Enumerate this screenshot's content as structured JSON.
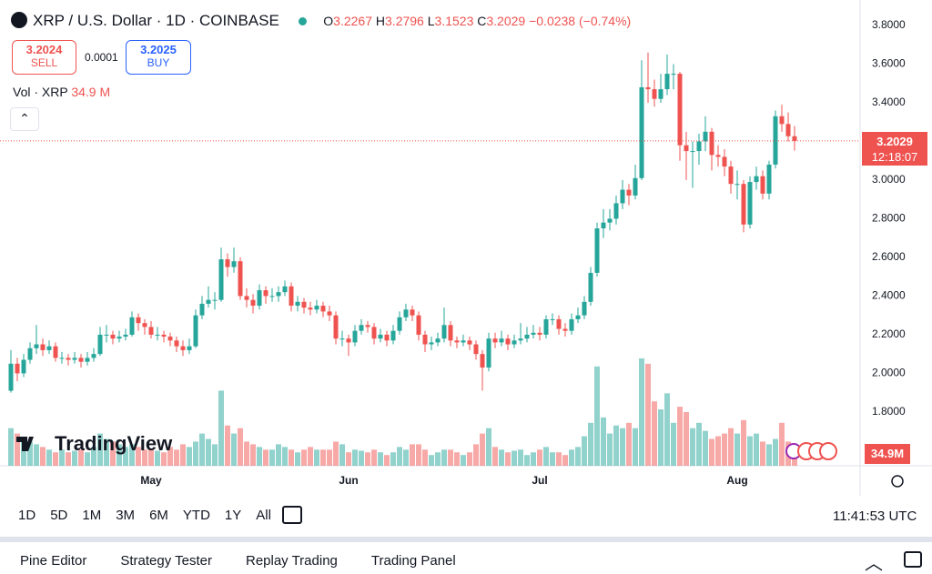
{
  "chart_data": {
    "type": "candlestick",
    "categories": [
      null,
      null,
      null,
      null,
      null,
      null,
      null,
      null,
      null,
      null,
      null,
      null,
      null,
      null,
      null,
      null,
      null,
      null,
      null,
      null,
      null,
      null,
      "May",
      null,
      null,
      null,
      null,
      null,
      null,
      null,
      null,
      null,
      null,
      null,
      null,
      null,
      null,
      null,
      null,
      null,
      null,
      null,
      null,
      null,
      null,
      null,
      null,
      null,
      null,
      null,
      null,
      null,
      null,
      "Jun",
      null,
      null,
      null,
      null,
      null,
      null,
      null,
      null,
      null,
      null,
      null,
      null,
      null,
      null,
      null,
      null,
      null,
      null,
      null,
      null,
      null,
      null,
      null,
      null,
      null,
      null,
      null,
      null,
      null,
      "Jul",
      null,
      null,
      null,
      null,
      null,
      null,
      null,
      null,
      null,
      null,
      null,
      null,
      null,
      null,
      null,
      null,
      null,
      null,
      null,
      null,
      null,
      null,
      null,
      null,
      null,
      null,
      null,
      null,
      null,
      null,
      "Aug",
      null,
      null,
      null,
      null,
      null,
      null,
      null,
      null,
      null
    ],
    "open": [
      1.91,
      2.05,
      2.0,
      2.07,
      2.13,
      2.15,
      2.12,
      2.14,
      2.08,
      2.08,
      2.07,
      2.08,
      2.06,
      2.08,
      2.1,
      2.2,
      2.2,
      2.18,
      2.19,
      2.2,
      2.29,
      2.26,
      2.24,
      2.2,
      2.2,
      2.19,
      2.17,
      2.14,
      2.12,
      2.14,
      2.3,
      2.36,
      2.38,
      2.38,
      2.59,
      2.55,
      2.58,
      2.4,
      2.38,
      2.35,
      2.43,
      2.4,
      2.4,
      2.42,
      2.45,
      2.35,
      2.37,
      2.34,
      2.33,
      2.35,
      2.32,
      2.3,
      2.18,
      2.18,
      2.16,
      2.22,
      2.25,
      2.24,
      2.18,
      2.2,
      2.17,
      2.22,
      2.29,
      2.33,
      2.3,
      2.2,
      2.15,
      2.16,
      2.18,
      2.25,
      2.17,
      2.16,
      2.17,
      2.15,
      2.1,
      2.03,
      2.18,
      2.16,
      2.18,
      2.15,
      2.17,
      2.18,
      2.2,
      2.21,
      2.2,
      2.28,
      2.28,
      2.23,
      2.22,
      2.28,
      2.3,
      2.37,
      2.52,
      2.75,
      2.78,
      2.8,
      2.88,
      2.95,
      2.92,
      3.01,
      3.48,
      3.47,
      3.42,
      3.47,
      3.55,
      3.55,
      3.18,
      3.15,
      3.15,
      3.2,
      3.25,
      3.13,
      3.12,
      3.07,
      2.98,
      2.98,
      2.77,
      2.99,
      3.02,
      2.93,
      3.08,
      3.33,
      3.29,
      3.2267
    ],
    "high": [
      2.12,
      2.08,
      2.1,
      2.16,
      2.25,
      2.18,
      2.17,
      2.16,
      2.11,
      2.1,
      2.11,
      2.1,
      2.11,
      2.13,
      2.24,
      2.25,
      2.22,
      2.22,
      2.23,
      2.32,
      2.31,
      2.28,
      2.27,
      2.24,
      2.22,
      2.21,
      2.19,
      2.17,
      2.18,
      2.33,
      2.4,
      2.45,
      2.42,
      2.65,
      2.62,
      2.65,
      2.6,
      2.44,
      2.41,
      2.46,
      2.45,
      2.44,
      2.45,
      2.48,
      2.47,
      2.4,
      2.39,
      2.37,
      2.38,
      2.37,
      2.35,
      2.32,
      2.22,
      2.2,
      2.25,
      2.28,
      2.27,
      2.26,
      2.23,
      2.22,
      2.25,
      2.32,
      2.36,
      2.35,
      2.32,
      2.22,
      2.19,
      2.21,
      2.34,
      2.27,
      2.19,
      2.2,
      2.19,
      2.17,
      2.12,
      2.21,
      2.21,
      2.22,
      2.2,
      2.2,
      2.26,
      2.24,
      2.25,
      2.24,
      2.3,
      2.31,
      2.3,
      2.26,
      2.31,
      2.34,
      2.4,
      2.55,
      2.78,
      2.85,
      2.85,
      2.92,
      3.0,
      2.98,
      3.08,
      3.62,
      3.66,
      3.52,
      3.55,
      3.65,
      3.6,
      3.56,
      3.25,
      3.2,
      3.24,
      3.33,
      3.27,
      3.18,
      3.16,
      3.1,
      3.05,
      3.0,
      3.02,
      3.07,
      3.05,
      3.1,
      3.36,
      3.39,
      3.35,
      3.2796
    ],
    "low": [
      1.9,
      1.96,
      1.98,
      2.05,
      2.1,
      2.09,
      2.1,
      2.06,
      2.05,
      2.04,
      2.05,
      2.03,
      2.04,
      2.06,
      2.09,
      2.16,
      2.15,
      2.16,
      2.17,
      2.19,
      2.22,
      2.2,
      2.18,
      2.17,
      2.16,
      2.14,
      2.11,
      2.09,
      2.1,
      2.13,
      2.28,
      2.34,
      2.33,
      2.37,
      2.5,
      2.52,
      2.38,
      2.34,
      2.31,
      2.33,
      2.36,
      2.37,
      2.37,
      2.4,
      2.32,
      2.32,
      2.31,
      2.3,
      2.31,
      2.29,
      2.27,
      2.15,
      2.14,
      2.09,
      2.14,
      2.2,
      2.21,
      2.15,
      2.16,
      2.14,
      2.15,
      2.2,
      2.27,
      2.27,
      2.17,
      2.11,
      2.12,
      2.14,
      2.16,
      2.14,
      2.13,
      2.14,
      2.12,
      2.07,
      1.91,
      2.01,
      2.13,
      2.14,
      2.12,
      2.13,
      2.15,
      2.16,
      2.18,
      2.17,
      2.18,
      2.25,
      2.2,
      2.19,
      2.2,
      2.26,
      2.28,
      2.35,
      2.5,
      2.7,
      2.74,
      2.77,
      2.85,
      2.87,
      2.9,
      3.0,
      3.4,
      3.38,
      3.4,
      3.44,
      3.47,
      3.1,
      3.0,
      2.96,
      3.08,
      3.15,
      3.05,
      3.07,
      3.02,
      2.93,
      2.9,
      2.73,
      2.75,
      2.95,
      2.9,
      2.9,
      3.06,
      3.25,
      3.2,
      3.1523
    ],
    "close": [
      2.05,
      2.0,
      2.07,
      2.13,
      2.15,
      2.12,
      2.14,
      2.08,
      2.08,
      2.07,
      2.08,
      2.06,
      2.08,
      2.1,
      2.2,
      2.2,
      2.18,
      2.19,
      2.2,
      2.29,
      2.26,
      2.24,
      2.2,
      2.2,
      2.19,
      2.17,
      2.14,
      2.12,
      2.14,
      2.3,
      2.36,
      2.38,
      2.38,
      2.59,
      2.55,
      2.58,
      2.4,
      2.38,
      2.35,
      2.43,
      2.4,
      2.4,
      2.42,
      2.45,
      2.35,
      2.37,
      2.34,
      2.33,
      2.35,
      2.32,
      2.3,
      2.18,
      2.18,
      2.16,
      2.22,
      2.25,
      2.24,
      2.18,
      2.2,
      2.17,
      2.22,
      2.29,
      2.33,
      2.3,
      2.2,
      2.15,
      2.16,
      2.18,
      2.25,
      2.17,
      2.16,
      2.17,
      2.15,
      2.1,
      2.03,
      2.18,
      2.16,
      2.18,
      2.15,
      2.17,
      2.18,
      2.2,
      2.21,
      2.2,
      2.28,
      2.28,
      2.23,
      2.22,
      2.28,
      2.3,
      2.37,
      2.52,
      2.75,
      2.78,
      2.8,
      2.88,
      2.95,
      2.92,
      3.01,
      3.48,
      3.47,
      3.42,
      3.47,
      3.55,
      3.55,
      3.18,
      3.15,
      3.15,
      3.2,
      3.25,
      3.13,
      3.12,
      3.07,
      2.98,
      2.98,
      2.77,
      2.99,
      3.02,
      2.93,
      3.08,
      3.33,
      3.29,
      3.2267,
      3.2029
    ],
    "volume": [
      70,
      60,
      50,
      45,
      40,
      35,
      30,
      25,
      30,
      25,
      28,
      30,
      25,
      35,
      60,
      50,
      45,
      40,
      35,
      40,
      35,
      30,
      30,
      28,
      25,
      35,
      30,
      40,
      35,
      45,
      60,
      50,
      40,
      140,
      75,
      60,
      70,
      45,
      40,
      35,
      30,
      30,
      40,
      35,
      30,
      25,
      30,
      35,
      30,
      30,
      30,
      45,
      40,
      25,
      30,
      28,
      25,
      30,
      25,
      20,
      25,
      35,
      30,
      40,
      40,
      30,
      20,
      25,
      30,
      30,
      25,
      20,
      25,
      40,
      60,
      70,
      35,
      30,
      25,
      28,
      30,
      20,
      25,
      30,
      35,
      25,
      25,
      20,
      30,
      35,
      55,
      80,
      185,
      90,
      60,
      75,
      70,
      80,
      70,
      200,
      190,
      120,
      105,
      135,
      80,
      110,
      100,
      70,
      80,
      65,
      50,
      55,
      60,
      70,
      60,
      85,
      55,
      60,
      45,
      40,
      50,
      80,
      45,
      34.9
    ],
    "up_color": "#26a69a",
    "down_color": "#ef5350",
    "ylim": [
      1.522,
      3.908
    ],
    "yticks": [
      {
        "value": 1.8,
        "label": "1.8000"
      },
      {
        "value": 2.0,
        "label": "2.0000"
      },
      {
        "value": 2.2,
        "label": "2.2000"
      },
      {
        "value": 2.4,
        "label": "2.4000"
      },
      {
        "value": 2.6,
        "label": "2.6000"
      },
      {
        "value": 2.8,
        "label": "2.8000"
      },
      {
        "value": 3.0,
        "label": "3.0000"
      },
      {
        "value": 3.2,
        "label": "3.2000"
      },
      {
        "value": 3.4,
        "label": "3.4000"
      },
      {
        "value": 3.6,
        "label": "3.6000"
      },
      {
        "value": 3.8,
        "label": "3.8000"
      }
    ],
    "grid": false,
    "price_line": true
  },
  "header": {
    "symbol": "XRP / U.S. Dollar · 1D · COINBASE",
    "o": "O",
    "h": "H",
    "l": "L",
    "c": "C",
    "change": "−0.0238 (−0.74%)"
  },
  "trade": {
    "sell_price": "3.2024",
    "sell": "SELL",
    "spread": "0.0001",
    "buy_price": "3.2025",
    "buy": "BUY"
  },
  "volume_legend": {
    "label": "Vol · XRP",
    "value": "34.9 M"
  },
  "price_countdown": "12:18:07",
  "volume_tag": "34.9M",
  "logo": "TradingView",
  "timeframes": [
    "1D",
    "5D",
    "1M",
    "3M",
    "6M",
    "YTD",
    "1Y",
    "All"
  ],
  "clock": "11:41:53 UTC",
  "bottom_tabs": [
    "Pine Editor",
    "Strategy Tester",
    "Replay Trading",
    "Trading Panel"
  ]
}
